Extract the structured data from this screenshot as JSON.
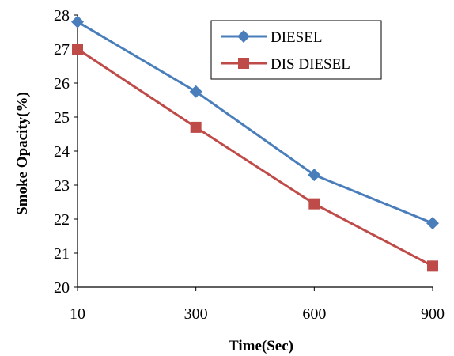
{
  "chart_data": {
    "type": "line",
    "title": "",
    "xlabel": "Time(Sec)",
    "ylabel": "Smoke Opacity(%)",
    "categories": [
      "10",
      "300",
      "600",
      "900"
    ],
    "ylim": [
      20,
      28
    ],
    "yticks": [
      20,
      21,
      22,
      23,
      24,
      25,
      26,
      27,
      28
    ],
    "grid": false,
    "legend_position": "top-right",
    "series": [
      {
        "name": "DIESEL",
        "values": [
          27.8,
          25.75,
          23.3,
          21.88
        ],
        "color": "#4a7ebb",
        "marker": "diamond"
      },
      {
        "name": "DIS DIESEL",
        "values": [
          27.0,
          24.7,
          22.45,
          20.62
        ],
        "color": "#be4b48",
        "marker": "square"
      }
    ]
  }
}
